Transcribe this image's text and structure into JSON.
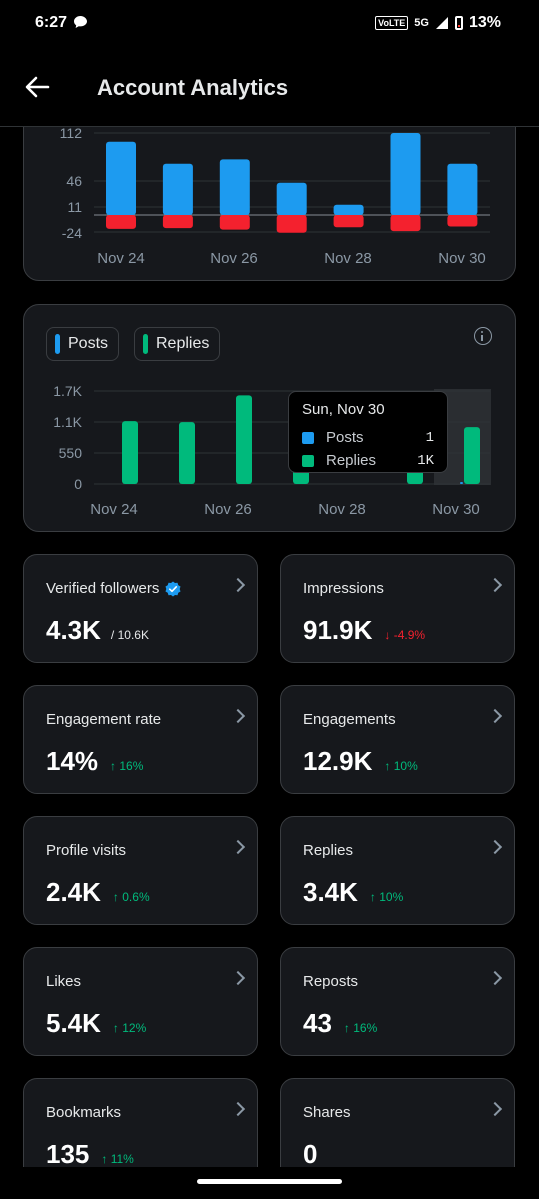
{
  "status_bar": {
    "time": "6:27",
    "network": "VoLTE",
    "signal": "5G",
    "battery": "13%"
  },
  "header": {
    "title": "Account Analytics"
  },
  "chart_top": {
    "type": "bar",
    "y_ticks": [
      "112",
      "46",
      "11",
      "-24"
    ],
    "x_labels": [
      "Nov 24",
      "Nov 26",
      "Nov 28",
      "Nov 30"
    ],
    "colors": {
      "positive": "#1d9bf0",
      "negative": "#f4212e"
    }
  },
  "chart_bottom": {
    "legend": {
      "posts": "Posts",
      "replies": "Replies"
    },
    "y_ticks": [
      "1.7K",
      "1.1K",
      "550",
      "0"
    ],
    "x_labels": [
      "Nov 24",
      "Nov 26",
      "Nov 28",
      "Nov 30"
    ],
    "tooltip": {
      "date": "Sun, Nov 30",
      "posts_label": "Posts",
      "posts_value": "1",
      "replies_label": "Replies",
      "replies_value": "1K"
    },
    "colors": {
      "posts": "#1d9bf0",
      "replies": "#00ba7c"
    }
  },
  "chart_data": [
    {
      "type": "bar",
      "categories": [
        "Nov 24",
        "Nov 25",
        "Nov 26",
        "Nov 27",
        "Nov 28",
        "Nov 29",
        "Nov 30"
      ],
      "series": [
        {
          "values": [
            100,
            70,
            76,
            44,
            14,
            112,
            70
          ]
        },
        {
          "values": [
            -18,
            -17,
            -19,
            -23,
            -16,
            -21,
            -15
          ]
        }
      ],
      "ylim": [
        -24,
        112
      ]
    },
    {
      "type": "bar",
      "categories": [
        "Nov 24",
        "Nov 25",
        "Nov 26",
        "Nov 27",
        "Nov 28",
        "Nov 29",
        "Nov 30"
      ],
      "series": [
        {
          "name": "Posts",
          "values": [
            0,
            0,
            0,
            0,
            0,
            0,
            1
          ]
        },
        {
          "name": "Replies",
          "values": [
            1150,
            1130,
            1620,
            600,
            0,
            500,
            1040
          ]
        }
      ],
      "ylim": [
        0,
        1700
      ]
    }
  ],
  "metrics": [
    {
      "label": "Verified followers",
      "value": "4.3K",
      "sub": "/ 10.6K",
      "delta": "",
      "dir": ""
    },
    {
      "label": "Impressions",
      "value": "91.9K",
      "sub": "",
      "delta": "↓ -4.9%",
      "dir": "down"
    },
    {
      "label": "Engagement rate",
      "value": "14%",
      "sub": "",
      "delta": "↑ 16%",
      "dir": "up"
    },
    {
      "label": "Engagements",
      "value": "12.9K",
      "sub": "",
      "delta": "↑ 10%",
      "dir": "up"
    },
    {
      "label": "Profile visits",
      "value": "2.4K",
      "sub": "",
      "delta": "↑ 0.6%",
      "dir": "up"
    },
    {
      "label": "Replies",
      "value": "3.4K",
      "sub": "",
      "delta": "↑ 10%",
      "dir": "up"
    },
    {
      "label": "Likes",
      "value": "5.4K",
      "sub": "",
      "delta": "↑ 12%",
      "dir": "up"
    },
    {
      "label": "Reposts",
      "value": "43",
      "sub": "",
      "delta": "↑ 16%",
      "dir": "up"
    },
    {
      "label": "Bookmarks",
      "value": "135",
      "sub": "",
      "delta": "↑ 11%",
      "dir": "up"
    },
    {
      "label": "Shares",
      "value": "0",
      "sub": "",
      "delta": "",
      "dir": ""
    }
  ]
}
